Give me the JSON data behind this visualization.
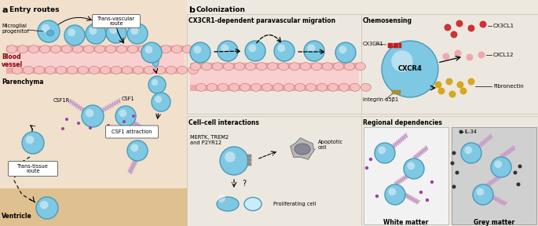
{
  "panel_a_label": "a",
  "panel_b_label": "b",
  "panel_a_title": "Entry routes",
  "panel_b_title": "Colonization",
  "section_titles": {
    "cx3cr1": "CX3CR1-dependent paravascular migration",
    "chemosensing": "Chemosensing",
    "cell_cell": "Cell–cell interactions",
    "regional": "Regional dependencies"
  },
  "labels": {
    "microglial_progenitor": "Microglial\nprogenitor",
    "trans_vascular": "Trans-vascular\nroute",
    "blood_vessel": "Blood\nvessel",
    "parenchyma": "Parenchyma",
    "csf1r": "CSF1R",
    "csf1": "CSF1",
    "csf1_attraction": "CSF1 attraction",
    "trans_tissue": "Trans-tissue\nroute",
    "ventricle": "Ventricle",
    "cx3cr1_label": "CX3CR1",
    "cxcr4": "CXCR4",
    "cx3cl1": "CX3CL1",
    "cxcl12": "CXCL12",
    "integrin": "Integrin α5β1",
    "fibronectin": "Fibronectin",
    "mertk": "MERTK, TREM2\nand P2YR12",
    "apoptotic": "Apoptotic\ncell",
    "proliferating": "Proliferating cell",
    "il34": "IL-34",
    "white_matter": "White matter",
    "grey_matter": "Grey matter"
  },
  "colors": {
    "bg_tan": "#f0e0cc",
    "bg_panel_b": "#ede8e0",
    "cell_fill": "#7ec8e3",
    "cell_edge": "#4a9ab8",
    "cell_highlight": "#c8ecf8",
    "vessel_pink_top": "#f0a8a8",
    "vessel_pink_mid": "#f8d0d0",
    "vessel_cell_fill": "#f5c0c0",
    "vessel_cell_edge": "#d08080",
    "csf1_chain": "#c8a0c8",
    "csf1_dot": "#a040a0",
    "apo_fill": "#b8b8b8",
    "apo_edge": "#808080",
    "apo_nuc": "#888898",
    "cx3cl1_red": "#cc3333",
    "cxcl12_pink": "#f0a8b0",
    "fibronectin_gold": "#d4a820",
    "il34_dark": "#333333",
    "white_matter_bg": "#f2f2f2",
    "grey_matter_bg": "#d0d0d0",
    "receptor_red": "#cc2222",
    "receptor_gold": "#c89000",
    "subpanel_bg": "#ede8e0",
    "subpanel_edge": "#c8c0b0",
    "ventricle_tan": "#dfc090"
  }
}
